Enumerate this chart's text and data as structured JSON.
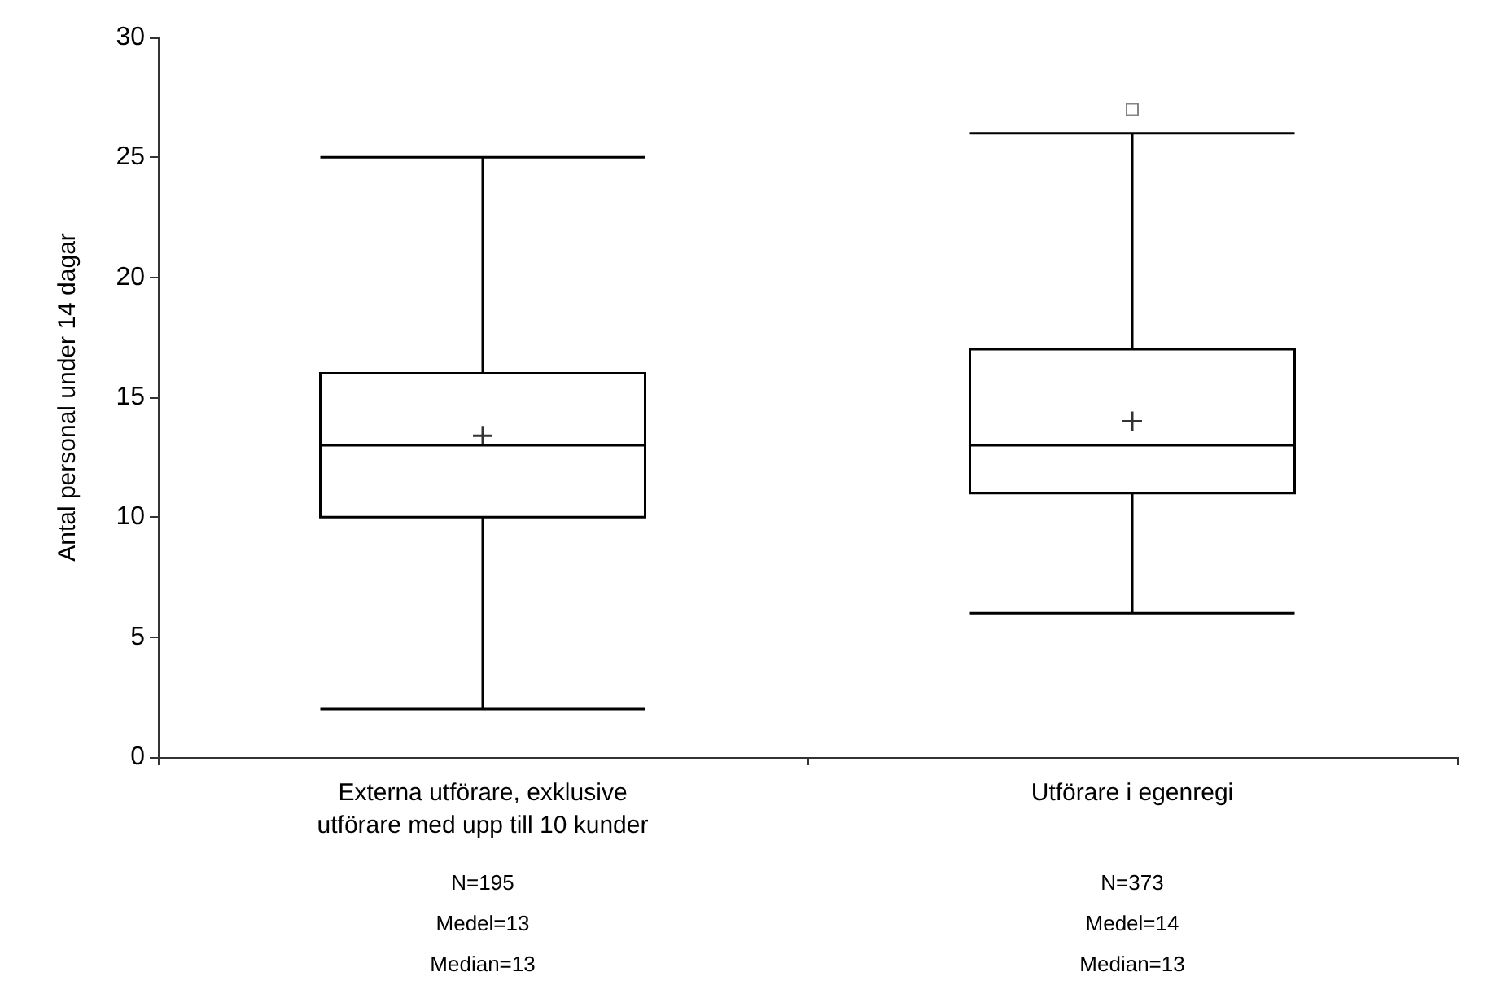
{
  "chart_data": {
    "type": "box",
    "ylabel": "Antal personal under 14 dagar",
    "categories": [
      "Externa utförare, exklusive\nutförare med upp till 10 kunder",
      "Utförare i egenregi"
    ],
    "boxes": [
      {
        "low": 2,
        "q1": 10,
        "median": 13,
        "q3": 16,
        "high": 25,
        "mean": 13.4
      },
      {
        "low": 6,
        "q1": 11,
        "median": 13,
        "q3": 17,
        "high": 26,
        "mean": 14,
        "outliers": [
          27
        ]
      }
    ],
    "color": "#000000",
    "ylim": [
      0,
      30
    ],
    "yticks": [
      0,
      5,
      10,
      15,
      20,
      25,
      30
    ],
    "grid": false,
    "annotations": [
      "N=195",
      "Medel=13",
      "Median=13",
      "N=373",
      "Medel=14",
      "Median=13"
    ]
  }
}
